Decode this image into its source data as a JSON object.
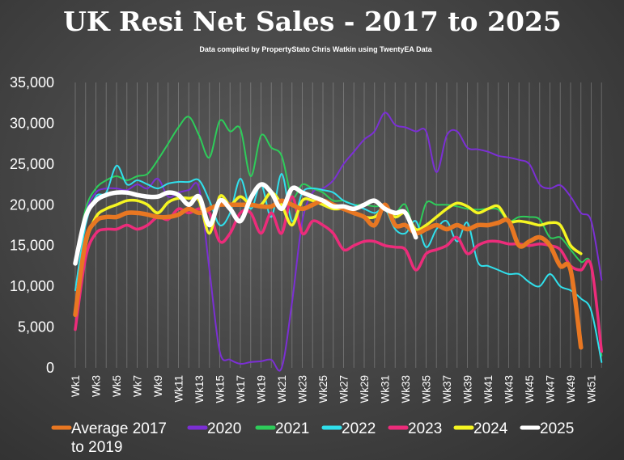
{
  "chart_data": {
    "type": "line",
    "title": "UK  Resi Net Sales - 2017 to 2025",
    "subtitle": "Data compiled by PropertyStato Chris Watkin using TwentyEA Data",
    "ylim": [
      0,
      35000
    ],
    "yticks": [
      "0",
      "5,000",
      "10,000",
      "15,000",
      "20,000",
      "25,000",
      "30,000",
      "35,000"
    ],
    "x_tick_labels": [
      "Wk1",
      "Wk3",
      "Wk5",
      "Wk7",
      "Wk9",
      "Wk11",
      "Wk13",
      "Wk15",
      "Wk17",
      "Wk19",
      "Wk21",
      "Wk23",
      "Wk25",
      "Wk27",
      "Wk29",
      "Wk31",
      "Wk33",
      "Wk35",
      "Wk37",
      "Wk39",
      "Wk41",
      "Wk43",
      "Wk45",
      "Wk47",
      "Wk49",
      "Wk51"
    ],
    "grid": "vertical",
    "legend_position": "bottom",
    "series": [
      {
        "name": "2020",
        "color": "#7b2fd4",
        "values": [
          13000,
          19000,
          21500,
          22000,
          22000,
          21800,
          22500,
          22000,
          23200,
          21000,
          21500,
          21800,
          22000,
          12000,
          2000,
          1000,
          500,
          700,
          800,
          1000,
          0,
          8000,
          18000,
          21500,
          22000,
          23000,
          25000,
          26500,
          28000,
          29000,
          31300,
          29800,
          29500,
          29000,
          29000,
          24000,
          28500,
          29000,
          27000,
          26800,
          26500,
          26000,
          25800,
          25500,
          25000,
          22500,
          22000,
          22400,
          21000,
          19000,
          18000,
          10800
        ]
      },
      {
        "name": "2021",
        "color": "#2ecc5a",
        "values": [
          12800,
          19500,
          22000,
          23000,
          23500,
          23000,
          23500,
          23800,
          25500,
          27500,
          29500,
          30800,
          28500,
          25800,
          30300,
          29000,
          29300,
          23500,
          28500,
          27000,
          26000,
          21000,
          22500,
          22000,
          21500,
          20500,
          20500,
          20000,
          20000,
          19800,
          19800,
          19000,
          20000,
          16500,
          20200,
          20000,
          20000,
          19800,
          19500,
          19400,
          19500,
          19400,
          18000,
          18500,
          18500,
          18200,
          16000,
          16000,
          14500,
          13000,
          12500,
          1500
        ]
      },
      {
        "name": "2022",
        "color": "#30e0ec",
        "values": [
          9500,
          17500,
          21000,
          21500,
          24800,
          22500,
          23000,
          22500,
          22000,
          22600,
          22800,
          22800,
          23000,
          20500,
          17500,
          19000,
          23200,
          19500,
          22500,
          18500,
          23800,
          18000,
          21500,
          22000,
          21800,
          21500,
          20500,
          20000,
          19500,
          19000,
          19500,
          17000,
          16500,
          18000,
          14800,
          17000,
          18000,
          15500,
          17800,
          13000,
          12500,
          12000,
          11500,
          11500,
          10500,
          10000,
          11500,
          10000,
          9500,
          8500,
          7000,
          700
        ]
      },
      {
        "name": "2023",
        "color": "#ec2c7a",
        "values": [
          4700,
          13500,
          16500,
          17000,
          17000,
          17500,
          17000,
          17500,
          18500,
          18200,
          19500,
          19000,
          19500,
          19000,
          15500,
          16500,
          19000,
          19000,
          16500,
          19000,
          16500,
          21000,
          16500,
          18000,
          17500,
          16500,
          14500,
          15000,
          15500,
          15500,
          15000,
          14800,
          14500,
          12000,
          14000,
          14500,
          15000,
          16000,
          14000,
          15000,
          15500,
          15500,
          15200,
          15200,
          15000,
          15200,
          15000,
          14500,
          12500,
          12000,
          12500,
          2000
        ]
      },
      {
        "name": "2024",
        "color": "#f5f522",
        "values": [
          6500,
          15000,
          18500,
          19500,
          20000,
          20500,
          20500,
          20000,
          19000,
          20300,
          20800,
          20800,
          20500,
          16500,
          21000,
          20000,
          21000,
          20000,
          20000,
          21500,
          20000,
          17500,
          20500,
          20500,
          20000,
          19500,
          19500,
          19000,
          18500,
          18500,
          19500,
          18500,
          19000,
          17000,
          17500,
          18500,
          19500,
          20200,
          19800,
          19000,
          19500,
          19800,
          18000,
          18000,
          17800,
          17500,
          17800,
          17500,
          15000,
          14000
        ]
      },
      {
        "name": "Average 2017 to 2019",
        "color": "#e87722",
        "values": [
          6500,
          15500,
          18000,
          18500,
          18500,
          19000,
          19000,
          18800,
          18500,
          18500,
          18800,
          19500,
          19000,
          19500,
          20000,
          20000,
          20000,
          20000,
          19800,
          19800,
          20500,
          20000,
          19500,
          20000,
          20500,
          20000,
          19500,
          19000,
          18500,
          17500,
          20000,
          17500,
          17500,
          16500,
          17000,
          17500,
          17000,
          17500,
          17000,
          17500,
          17500,
          17800,
          18000,
          15000,
          15500,
          16000,
          15000,
          12500,
          12000,
          2500
        ]
      },
      {
        "name": "2025",
        "color": "#ffffff",
        "values": [
          12800,
          18500,
          20500,
          21200,
          21500,
          21500,
          21200,
          21000,
          21000,
          21500,
          21200,
          20000,
          21000,
          17500,
          20500,
          19500,
          18000,
          20800,
          22500,
          21500,
          19500,
          22000,
          21500,
          21000,
          20500,
          19800,
          19800,
          19500,
          20000,
          20500,
          19500,
          19000,
          19000,
          16000
        ]
      }
    ]
  },
  "legend": [
    {
      "label": "Average 2017\nto 2019",
      "color": "#e87722"
    },
    {
      "label": "2020",
      "color": "#7b2fd4"
    },
    {
      "label": "2021",
      "color": "#2ecc5a"
    },
    {
      "label": "2022",
      "color": "#30e0ec"
    },
    {
      "label": "2023",
      "color": "#ec2c7a"
    },
    {
      "label": "2024",
      "color": "#f5f522"
    },
    {
      "label": "2025",
      "color": "#ffffff"
    }
  ]
}
